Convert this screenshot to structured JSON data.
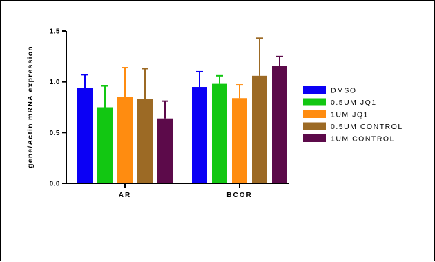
{
  "chart_data": {
    "type": "bar",
    "ylabel": "gene/Actin mRNA expression",
    "xlabel": "",
    "ylim": [
      0,
      1.5
    ],
    "yticks": [
      "0.0",
      "0.5",
      "1.0",
      "1.5"
    ],
    "yticks_values": [
      0,
      0.5,
      1.0,
      1.5
    ],
    "categories": [
      "AR",
      "BCOR"
    ],
    "legend_position": "right",
    "series": [
      {
        "name": "DMSO",
        "color": "#0b00f5",
        "values": [
          0.94,
          0.95
        ],
        "errors": [
          0.13,
          0.15
        ]
      },
      {
        "name": "0.5UM JQ1",
        "color": "#12c712",
        "values": [
          0.75,
          0.98
        ],
        "errors": [
          0.21,
          0.08
        ]
      },
      {
        "name": "1UM JQ1",
        "color": "#ff8c10",
        "values": [
          0.85,
          0.84
        ],
        "errors": [
          0.29,
          0.13
        ]
      },
      {
        "name": "0.5UM CONTROL",
        "color": "#9c6a25",
        "values": [
          0.83,
          1.06
        ],
        "errors": [
          0.3,
          0.37
        ]
      },
      {
        "name": "1UM CONTROL",
        "color": "#5c0a4a",
        "values": [
          0.64,
          1.16
        ],
        "errors": [
          0.17,
          0.09
        ]
      }
    ]
  }
}
